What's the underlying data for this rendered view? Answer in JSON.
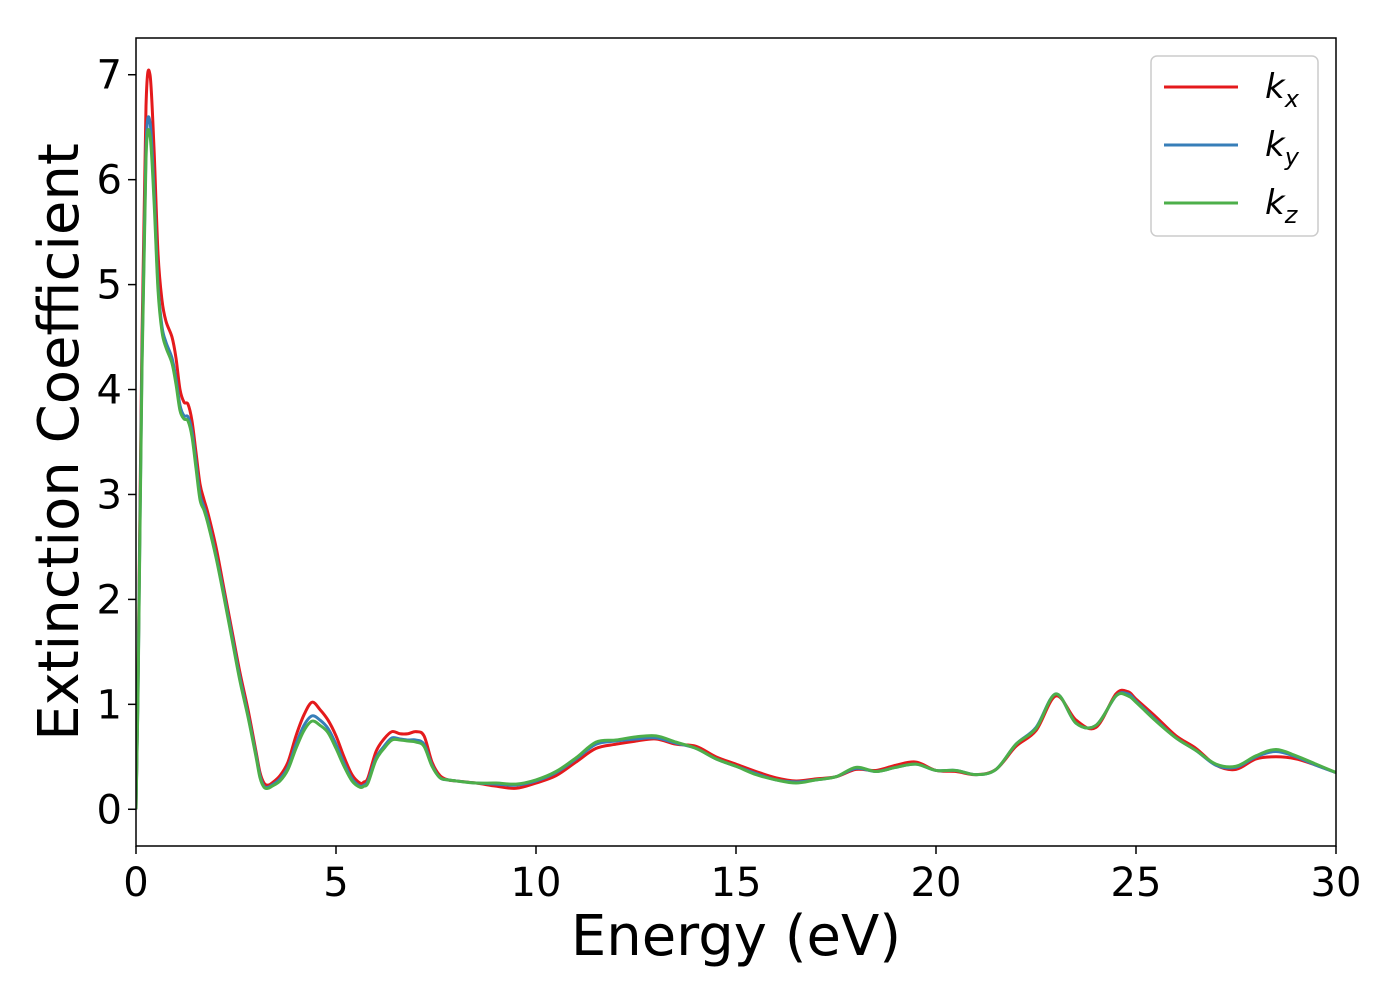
{
  "chart_data": {
    "type": "line",
    "title": "",
    "xlabel": "Energy (eV)",
    "ylabel": "Extinction Coefficient",
    "xlim": [
      0,
      30
    ],
    "ylim": [
      -0.35,
      7.35
    ],
    "xticks": [
      0,
      5,
      10,
      15,
      20,
      25,
      30
    ],
    "yticks": [
      0,
      1,
      2,
      3,
      4,
      5,
      6,
      7
    ],
    "grid": false,
    "legend_position": "top-right",
    "series": [
      {
        "name": "k_x",
        "label_base": "k",
        "label_sub": "x",
        "color": "#e41a1c",
        "x": [
          0.0,
          0.05,
          0.15,
          0.25,
          0.35,
          0.45,
          0.55,
          0.65,
          0.75,
          0.9,
          1.0,
          1.1,
          1.2,
          1.3,
          1.4,
          1.5,
          1.6,
          1.7,
          1.8,
          2.0,
          2.2,
          2.4,
          2.6,
          2.8,
          3.0,
          3.1,
          3.2,
          3.3,
          3.4,
          3.6,
          3.8,
          4.0,
          4.2,
          4.4,
          4.6,
          4.8,
          5.0,
          5.2,
          5.4,
          5.6,
          5.7,
          5.8,
          6.0,
          6.2,
          6.4,
          6.6,
          6.8,
          7.0,
          7.2,
          7.4,
          7.6,
          7.8,
          8.0,
          8.5,
          9.0,
          9.5,
          10.0,
          10.5,
          11.0,
          11.5,
          12.0,
          12.5,
          13.0,
          13.5,
          14.0,
          14.5,
          15.0,
          15.5,
          16.0,
          16.5,
          17.0,
          17.5,
          18.0,
          18.5,
          19.0,
          19.5,
          20.0,
          20.5,
          21.0,
          21.5,
          22.0,
          22.5,
          23.0,
          23.5,
          24.0,
          24.5,
          24.8,
          25.0,
          25.5,
          26.0,
          26.5,
          27.0,
          27.5,
          28.0,
          28.5,
          29.0,
          29.5,
          30.0
        ],
        "y": [
          0.0,
          1.2,
          4.5,
          6.7,
          7.0,
          6.3,
          5.3,
          4.85,
          4.65,
          4.5,
          4.3,
          4.0,
          3.88,
          3.86,
          3.7,
          3.4,
          3.1,
          2.95,
          2.82,
          2.5,
          2.1,
          1.7,
          1.3,
          0.95,
          0.55,
          0.35,
          0.25,
          0.23,
          0.25,
          0.32,
          0.45,
          0.7,
          0.9,
          1.02,
          0.95,
          0.85,
          0.7,
          0.5,
          0.33,
          0.25,
          0.26,
          0.3,
          0.55,
          0.67,
          0.74,
          0.72,
          0.72,
          0.74,
          0.7,
          0.45,
          0.32,
          0.28,
          0.27,
          0.25,
          0.22,
          0.2,
          0.25,
          0.32,
          0.45,
          0.58,
          0.62,
          0.65,
          0.67,
          0.62,
          0.6,
          0.5,
          0.43,
          0.36,
          0.3,
          0.27,
          0.29,
          0.31,
          0.38,
          0.37,
          0.42,
          0.45,
          0.37,
          0.36,
          0.33,
          0.38,
          0.6,
          0.75,
          1.08,
          0.85,
          0.78,
          1.1,
          1.12,
          1.05,
          0.88,
          0.7,
          0.58,
          0.42,
          0.38,
          0.48,
          0.5,
          0.48,
          0.42,
          0.35
        ]
      },
      {
        "name": "k_y",
        "label_base": "k",
        "label_sub": "y",
        "color": "#377eb8",
        "x": [
          0.0,
          0.05,
          0.15,
          0.25,
          0.35,
          0.45,
          0.55,
          0.65,
          0.75,
          0.9,
          1.0,
          1.1,
          1.2,
          1.3,
          1.4,
          1.5,
          1.6,
          1.7,
          1.8,
          2.0,
          2.2,
          2.4,
          2.6,
          2.8,
          3.0,
          3.1,
          3.2,
          3.3,
          3.4,
          3.6,
          3.8,
          4.0,
          4.2,
          4.4,
          4.6,
          4.8,
          5.0,
          5.2,
          5.4,
          5.6,
          5.7,
          5.8,
          6.0,
          6.2,
          6.4,
          6.6,
          6.8,
          7.0,
          7.2,
          7.4,
          7.6,
          7.8,
          8.0,
          8.5,
          9.0,
          9.5,
          10.0,
          10.5,
          11.0,
          11.5,
          12.0,
          12.5,
          13.0,
          13.5,
          14.0,
          14.5,
          15.0,
          15.5,
          16.0,
          16.5,
          17.0,
          17.5,
          18.0,
          18.5,
          19.0,
          19.5,
          20.0,
          20.5,
          21.0,
          21.5,
          22.0,
          22.5,
          23.0,
          23.5,
          24.0,
          24.5,
          24.8,
          25.0,
          25.5,
          26.0,
          26.5,
          27.0,
          27.5,
          28.0,
          28.5,
          29.0,
          29.5,
          30.0
        ],
        "y": [
          0.0,
          1.1,
          4.3,
          6.3,
          6.55,
          5.9,
          5.0,
          4.6,
          4.45,
          4.3,
          4.1,
          3.85,
          3.75,
          3.74,
          3.6,
          3.3,
          3.0,
          2.88,
          2.75,
          2.42,
          2.05,
          1.65,
          1.25,
          0.9,
          0.52,
          0.32,
          0.22,
          0.21,
          0.23,
          0.29,
          0.4,
          0.62,
          0.8,
          0.89,
          0.85,
          0.77,
          0.62,
          0.44,
          0.29,
          0.22,
          0.23,
          0.27,
          0.49,
          0.6,
          0.68,
          0.67,
          0.66,
          0.66,
          0.62,
          0.42,
          0.3,
          0.28,
          0.27,
          0.25,
          0.24,
          0.23,
          0.27,
          0.35,
          0.48,
          0.62,
          0.65,
          0.67,
          0.68,
          0.63,
          0.58,
          0.48,
          0.41,
          0.34,
          0.28,
          0.26,
          0.28,
          0.31,
          0.39,
          0.36,
          0.4,
          0.43,
          0.37,
          0.37,
          0.33,
          0.38,
          0.62,
          0.78,
          1.1,
          0.82,
          0.8,
          1.08,
          1.1,
          1.03,
          0.85,
          0.68,
          0.56,
          0.42,
          0.4,
          0.5,
          0.55,
          0.5,
          0.42,
          0.35
        ]
      },
      {
        "name": "k_z",
        "label_base": "k",
        "label_sub": "z",
        "color": "#4daf4a",
        "x": [
          0.0,
          0.05,
          0.15,
          0.25,
          0.35,
          0.45,
          0.55,
          0.65,
          0.75,
          0.9,
          1.0,
          1.1,
          1.2,
          1.3,
          1.4,
          1.5,
          1.6,
          1.7,
          1.8,
          2.0,
          2.2,
          2.4,
          2.6,
          2.8,
          3.0,
          3.1,
          3.2,
          3.3,
          3.4,
          3.6,
          3.8,
          4.0,
          4.2,
          4.4,
          4.6,
          4.8,
          5.0,
          5.2,
          5.4,
          5.6,
          5.7,
          5.8,
          6.0,
          6.2,
          6.4,
          6.6,
          6.8,
          7.0,
          7.2,
          7.4,
          7.6,
          7.8,
          8.0,
          8.5,
          9.0,
          9.5,
          10.0,
          10.5,
          11.0,
          11.5,
          12.0,
          12.5,
          13.0,
          13.5,
          14.0,
          14.5,
          15.0,
          15.5,
          16.0,
          16.5,
          17.0,
          17.5,
          18.0,
          18.5,
          19.0,
          19.5,
          20.0,
          20.5,
          21.0,
          21.5,
          22.0,
          22.5,
          23.0,
          23.5,
          24.0,
          24.5,
          24.8,
          25.0,
          25.5,
          26.0,
          26.5,
          27.0,
          27.5,
          28.0,
          28.5,
          29.0,
          29.5,
          30.0
        ],
        "y": [
          0.0,
          1.05,
          4.2,
          6.2,
          6.42,
          5.8,
          4.95,
          4.55,
          4.4,
          4.25,
          4.05,
          3.8,
          3.72,
          3.7,
          3.55,
          3.25,
          2.95,
          2.85,
          2.72,
          2.4,
          2.02,
          1.62,
          1.22,
          0.88,
          0.5,
          0.3,
          0.21,
          0.2,
          0.22,
          0.27,
          0.38,
          0.58,
          0.75,
          0.84,
          0.8,
          0.73,
          0.58,
          0.41,
          0.27,
          0.21,
          0.22,
          0.25,
          0.47,
          0.58,
          0.66,
          0.66,
          0.65,
          0.64,
          0.6,
          0.41,
          0.3,
          0.28,
          0.27,
          0.25,
          0.25,
          0.24,
          0.28,
          0.36,
          0.49,
          0.64,
          0.66,
          0.69,
          0.7,
          0.64,
          0.58,
          0.48,
          0.41,
          0.33,
          0.28,
          0.25,
          0.28,
          0.31,
          0.4,
          0.36,
          0.4,
          0.43,
          0.37,
          0.37,
          0.33,
          0.38,
          0.62,
          0.77,
          1.1,
          0.82,
          0.8,
          1.08,
          1.08,
          1.02,
          0.84,
          0.68,
          0.56,
          0.43,
          0.41,
          0.51,
          0.57,
          0.51,
          0.43,
          0.35
        ]
      }
    ]
  }
}
